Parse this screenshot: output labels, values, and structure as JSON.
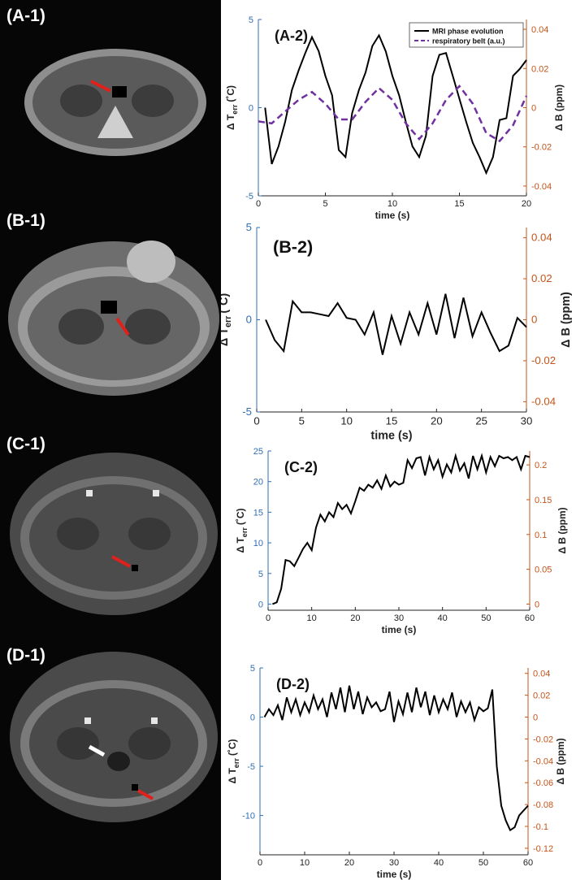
{
  "colors": {
    "left_axis": "#2f6fb5",
    "right_axis": "#c5541a",
    "mri_line": "#000000",
    "belt_line": "#7030a0",
    "arrow_red": "#e0201b",
    "arrow_white": "#ffffff"
  },
  "images": [
    {
      "label": "(A-1)",
      "arrows": [
        "red-arrow"
      ]
    },
    {
      "label": "(B-1)",
      "arrows": [
        "red-arrow"
      ]
    },
    {
      "label": "(C-1)",
      "arrows": [
        "red-arrow"
      ]
    },
    {
      "label": "(D-1)",
      "arrows": [
        "white-arrow",
        "red-arrow"
      ]
    }
  ],
  "chart_data": [
    {
      "type": "line",
      "panel_label": "(A-2)",
      "xlabel": "time (s)",
      "ylabel_left": "Δ T",
      "ylabel_left_sub": "err",
      "ylabel_left_unit": "(˚C)",
      "ylabel_right": "Δ B (ppm)",
      "xlim": [
        0,
        20
      ],
      "ylim_left": [
        -5,
        5
      ],
      "ylim_right": [
        -0.045,
        0.045
      ],
      "xticks": [
        0,
        5,
        10,
        15,
        20
      ],
      "yticks_left": [
        -5,
        0,
        5
      ],
      "yticks_right": [
        -0.04,
        -0.02,
        0,
        0.02,
        0.04
      ],
      "ytick_labels_right": [
        "-0.04",
        "-0.02",
        "0",
        "0.02",
        "0.04"
      ],
      "legend_position": "top-right",
      "series": [
        {
          "name": "MRI phase evolution",
          "axis": "left",
          "style": "solid",
          "x": [
            0.5,
            1,
            1.5,
            2,
            2.5,
            3,
            3.5,
            4,
            4.5,
            5,
            5.5,
            6,
            6.5,
            7,
            7.5,
            8,
            8.5,
            9,
            9.5,
            10,
            10.5,
            11,
            11.5,
            12,
            12.5,
            13,
            13.5,
            14,
            14.5,
            15,
            15.5,
            16,
            16.5,
            17,
            17.5,
            18,
            18.5,
            19,
            19.5,
            20
          ],
          "y": [
            0,
            -3.2,
            -2.2,
            -0.8,
            1.0,
            2.1,
            3.1,
            4.0,
            3.2,
            1.8,
            0.7,
            -2.4,
            -2.8,
            -0.3,
            1.0,
            2.0,
            3.5,
            4.1,
            3.2,
            1.8,
            0.7,
            -0.8,
            -2.2,
            -2.8,
            -1.6,
            1.8,
            3.0,
            3.1,
            1.8,
            0.5,
            -0.8,
            -2.0,
            -2.8,
            -3.7,
            -2.8,
            -0.7,
            -0.6,
            1.8,
            2.2,
            2.7
          ]
        },
        {
          "name": "respiratory belt (a.u.)",
          "axis": "right",
          "style": "dashed",
          "x": [
            0,
            1,
            2,
            3,
            4,
            5,
            6,
            7,
            8,
            9,
            10,
            11,
            12,
            13,
            14,
            15,
            16,
            17,
            18,
            19,
            20
          ],
          "y": [
            -0.007,
            -0.008,
            -0.002,
            0.004,
            0.008,
            0.002,
            -0.006,
            -0.006,
            0.003,
            0.01,
            0.004,
            -0.008,
            -0.016,
            -0.008,
            0.004,
            0.011,
            0.002,
            -0.013,
            -0.017,
            -0.009,
            0.006
          ]
        }
      ]
    },
    {
      "type": "line",
      "panel_label": "(B-2)",
      "xlabel": "time (s)",
      "ylabel_left": "Δ T",
      "ylabel_left_sub": "err",
      "ylabel_left_unit": "(˚C)",
      "ylabel_right": "Δ B (ppm)",
      "xlim": [
        0,
        30
      ],
      "ylim_left": [
        -5,
        5
      ],
      "ylim_right": [
        -0.045,
        0.045
      ],
      "xticks": [
        0,
        5,
        10,
        15,
        20,
        25,
        30
      ],
      "yticks_left": [
        -5,
        0,
        5
      ],
      "yticks_right": [
        -0.04,
        -0.02,
        0,
        0.02,
        0.04
      ],
      "ytick_labels_right": [
        "-0.04",
        "-0.02",
        "0",
        "0.02",
        "0.04"
      ],
      "series": [
        {
          "name": "",
          "axis": "left",
          "style": "solid",
          "x": [
            1,
            2,
            3,
            4,
            5,
            6,
            7,
            8,
            9,
            10,
            11,
            12,
            13,
            14,
            15,
            16,
            17,
            18,
            19,
            20,
            21,
            22,
            23,
            24,
            25,
            26,
            27,
            28,
            29,
            30
          ],
          "y": [
            0,
            -1.1,
            -1.7,
            1.0,
            0.4,
            0.4,
            0.3,
            0.2,
            0.9,
            0.1,
            0.0,
            -0.8,
            0.4,
            -1.9,
            0.2,
            -1.3,
            0.4,
            -0.8,
            0.9,
            -0.8,
            1.4,
            -1.0,
            1.2,
            -0.9,
            0.4,
            -0.7,
            -1.7,
            -1.4,
            0.1,
            -0.4
          ]
        }
      ]
    },
    {
      "type": "line",
      "panel_label": "(C-2)",
      "xlabel": "time (s)",
      "ylabel_left": "Δ T",
      "ylabel_left_sub": "err",
      "ylabel_left_unit": "(˚C)",
      "ylabel_right": "Δ B (ppm)",
      "xlim": [
        0,
        60
      ],
      "ylim_left": [
        -1,
        25
      ],
      "ylim_right": [
        -0.0088,
        0.22
      ],
      "xticks": [
        0,
        10,
        20,
        30,
        40,
        50,
        60
      ],
      "yticks_left": [
        0,
        5,
        10,
        15,
        20,
        25
      ],
      "yticks_right": [
        0,
        0.05,
        0.1,
        0.15,
        0.2
      ],
      "ytick_labels_right": [
        "0",
        "0.05",
        "0.1",
        "0.15",
        "0.2"
      ],
      "series": [
        {
          "name": "",
          "axis": "left",
          "style": "solid",
          "x": [
            1,
            2,
            3,
            4,
            5,
            6,
            7,
            8,
            9,
            10,
            11,
            12,
            13,
            14,
            15,
            16,
            17,
            18,
            19,
            20,
            21,
            22,
            23,
            24,
            25,
            26,
            27,
            28,
            29,
            30,
            31,
            32,
            33,
            34,
            35,
            36,
            37,
            38,
            39,
            40,
            41,
            42,
            43,
            44,
            45,
            46,
            47,
            48,
            49,
            50,
            51,
            52,
            53,
            54,
            55,
            56,
            57,
            58,
            59,
            60
          ],
          "y": [
            0,
            0.3,
            2.5,
            7.2,
            7.0,
            6.2,
            7.6,
            9.0,
            10.0,
            8.8,
            12.5,
            14.6,
            13.5,
            15.0,
            14.2,
            16.5,
            15.5,
            16.2,
            14.8,
            16.8,
            19.0,
            18.5,
            19.5,
            19.0,
            20.2,
            18.8,
            21.0,
            19.2,
            20.0,
            19.5,
            19.8,
            23.5,
            22.2,
            23.8,
            24.0,
            21.0,
            24.0,
            22.0,
            23.5,
            20.8,
            22.8,
            21.5,
            24.2,
            21.8,
            23.0,
            20.5,
            24.2,
            22.0,
            24.2,
            21.5,
            24.0,
            22.5,
            24.2,
            23.8,
            24.0,
            23.5,
            24.0,
            22.0,
            24.2,
            24.0
          ]
        }
      ]
    },
    {
      "type": "line",
      "panel_label": "(D-2)",
      "xlabel": "time (s)",
      "ylabel_left": "Δ T",
      "ylabel_left_sub": "err",
      "ylabel_left_unit": "(˚C)",
      "ylabel_right": "Δ B (ppm)",
      "xlim": [
        0,
        60
      ],
      "ylim_left": [
        -14,
        5
      ],
      "ylim_right": [
        -0.126,
        0.045
      ],
      "xticks": [
        0,
        10,
        20,
        30,
        40,
        50,
        60
      ],
      "yticks_left": [
        -10,
        -5,
        0,
        5
      ],
      "yticks_right": [
        -0.12,
        -0.1,
        -0.08,
        -0.06,
        -0.04,
        -0.02,
        0,
        0.02,
        0.04
      ],
      "ytick_labels_right": [
        "-0.12",
        "-0.1",
        "-0.08",
        "-0.06",
        "-0.04",
        "-0.02",
        "0",
        "0.02",
        "0.04"
      ],
      "series": [
        {
          "name": "",
          "axis": "left",
          "style": "solid",
          "x": [
            1,
            2,
            3,
            4,
            5,
            6,
            7,
            8,
            9,
            10,
            11,
            12,
            13,
            14,
            15,
            16,
            17,
            18,
            19,
            20,
            21,
            22,
            23,
            24,
            25,
            26,
            27,
            28,
            29,
            30,
            31,
            32,
            33,
            34,
            35,
            36,
            37,
            38,
            39,
            40,
            41,
            42,
            43,
            44,
            45,
            46,
            47,
            48,
            49,
            50,
            51,
            52,
            53,
            54,
            55,
            56,
            57,
            58,
            59,
            60
          ],
          "y": [
            0,
            0.8,
            0.2,
            1.2,
            -0.3,
            2.0,
            0.5,
            1.8,
            0.2,
            1.5,
            0.5,
            2.2,
            0.8,
            1.8,
            0.0,
            2.5,
            0.8,
            3.0,
            0.5,
            3.2,
            0.8,
            2.6,
            0.3,
            2.0,
            1.0,
            1.5,
            0.6,
            0.8,
            2.6,
            -0.5,
            1.6,
            0.3,
            2.5,
            0.5,
            3.0,
            1.0,
            2.6,
            0.2,
            2.2,
            0.5,
            1.8,
            0.8,
            2.5,
            0.0,
            1.6,
            0.5,
            1.5,
            -0.3,
            1.0,
            0.6,
            0.9,
            2.8,
            -5.0,
            -9.0,
            -10.5,
            -11.5,
            -11.2,
            -10.0,
            -9.5,
            -9.0
          ]
        }
      ]
    }
  ]
}
